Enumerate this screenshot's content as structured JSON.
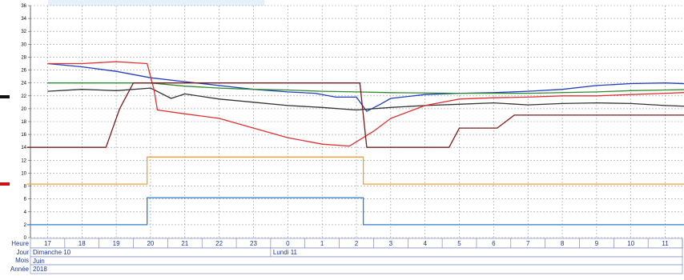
{
  "chart_data": {
    "type": "line",
    "title": "",
    "xlabel": "",
    "ylabel": "",
    "ylim": [
      0,
      36
    ],
    "yticks": [
      0,
      2,
      4,
      6,
      8,
      10,
      12,
      14,
      16,
      18,
      20,
      22,
      24,
      26,
      28,
      30,
      32,
      34,
      36
    ],
    "grid": true,
    "x_unit": "hour",
    "hours": [
      "17",
      "18",
      "19",
      "20",
      "21",
      "22",
      "23",
      "0",
      "1",
      "2",
      "3",
      "4",
      "5",
      "6",
      "7",
      "8",
      "9",
      "10",
      "11"
    ],
    "footer": {
      "hour_label": "Heure",
      "day_label": "Jour",
      "month_label": "Mois",
      "year_label": "Année",
      "days": [
        {
          "label": "Dimanche 10",
          "start_hour": "17"
        },
        {
          "label": "Lundi 11",
          "start_hour": "0"
        }
      ],
      "month": "Juin",
      "year": "2018"
    },
    "series": [
      {
        "color": "#1f3fbf",
        "points": [
          [
            0,
            27
          ],
          [
            1,
            26.5
          ],
          [
            2,
            25.8
          ],
          [
            3,
            24.8
          ],
          [
            4,
            24.2
          ],
          [
            5,
            23.6
          ],
          [
            6,
            23.0
          ],
          [
            7,
            22.6
          ],
          [
            7.8,
            22.4
          ],
          [
            8.4,
            21.8
          ],
          [
            9,
            21.8
          ],
          [
            9.3,
            19.6
          ],
          [
            9.7,
            20.7
          ],
          [
            10,
            21.6
          ],
          [
            11,
            22.2
          ],
          [
            12,
            22.4
          ],
          [
            13,
            22.5
          ],
          [
            14,
            22.7
          ],
          [
            15,
            23.0
          ],
          [
            16,
            23.6
          ],
          [
            17,
            23.9
          ],
          [
            18,
            24.0
          ],
          [
            19,
            23.8
          ]
        ]
      },
      {
        "color": "#2e8b2e",
        "points": [
          [
            0,
            24.0
          ],
          [
            2,
            24.0
          ],
          [
            3,
            24.0
          ],
          [
            4,
            23.5
          ],
          [
            5,
            23.2
          ],
          [
            6,
            23.0
          ],
          [
            7,
            22.9
          ],
          [
            8,
            22.7
          ],
          [
            9,
            22.6
          ],
          [
            10,
            22.5
          ],
          [
            12,
            22.4
          ],
          [
            14,
            22.4
          ],
          [
            16,
            22.6
          ],
          [
            17,
            22.8
          ],
          [
            18,
            22.9
          ],
          [
            19,
            23.0
          ]
        ]
      },
      {
        "color": "#333333",
        "points": [
          [
            0,
            22.7
          ],
          [
            1,
            23.0
          ],
          [
            2,
            22.8
          ],
          [
            3,
            23.2
          ],
          [
            3.6,
            21.6
          ],
          [
            4,
            22.3
          ],
          [
            5,
            21.5
          ],
          [
            6,
            21.0
          ],
          [
            7,
            20.5
          ],
          [
            8,
            20.2
          ],
          [
            9,
            19.8
          ],
          [
            9.5,
            20.0
          ],
          [
            10,
            20.2
          ],
          [
            11,
            20.5
          ],
          [
            12,
            20.7
          ],
          [
            13,
            20.9
          ],
          [
            14,
            20.6
          ],
          [
            15,
            20.8
          ],
          [
            16,
            20.9
          ],
          [
            17,
            20.8
          ],
          [
            18,
            20.5
          ],
          [
            19,
            20.3
          ]
        ]
      },
      {
        "color": "#e03030",
        "points": [
          [
            0,
            27.0
          ],
          [
            1,
            27.0
          ],
          [
            2,
            27.3
          ],
          [
            2.9,
            27.0
          ],
          [
            3.1,
            23.0
          ],
          [
            3.2,
            19.8
          ],
          [
            4,
            19.2
          ],
          [
            5,
            18.5
          ],
          [
            6,
            17.0
          ],
          [
            7,
            15.5
          ],
          [
            8,
            14.5
          ],
          [
            8.8,
            14.2
          ],
          [
            9.5,
            16.5
          ],
          [
            10,
            18.5
          ],
          [
            11,
            20.5
          ],
          [
            12,
            21.5
          ],
          [
            13,
            21.7
          ],
          [
            14,
            21.8
          ],
          [
            15,
            22.0
          ],
          [
            16,
            22.0
          ],
          [
            17,
            22.2
          ],
          [
            18,
            22.4
          ],
          [
            19,
            22.6
          ]
        ]
      },
      {
        "color": "#7a1a1a",
        "points": [
          [
            -0.6,
            14
          ],
          [
            1.7,
            14
          ],
          [
            2.1,
            20
          ],
          [
            2.5,
            24
          ],
          [
            3,
            24
          ],
          [
            4,
            24
          ],
          [
            5,
            24
          ],
          [
            6,
            24
          ],
          [
            7,
            24
          ],
          [
            8,
            24
          ],
          [
            9.1,
            24
          ],
          [
            9.3,
            14
          ],
          [
            10,
            14
          ],
          [
            11,
            14
          ],
          [
            11.7,
            14
          ],
          [
            12,
            17
          ],
          [
            13.1,
            17
          ],
          [
            13.6,
            19
          ],
          [
            19,
            19
          ]
        ]
      },
      {
        "color": "#f0a030",
        "points": [
          [
            -0.6,
            8.3
          ],
          [
            2.9,
            8.3
          ],
          [
            2.9,
            12.5
          ],
          [
            9.2,
            12.5
          ],
          [
            9.2,
            8.3
          ],
          [
            19,
            8.3
          ]
        ]
      },
      {
        "color": "#2a7fd0",
        "points": [
          [
            -0.6,
            2.0
          ],
          [
            2.9,
            2.0
          ],
          [
            2.9,
            6.2
          ],
          [
            9.2,
            6.2
          ],
          [
            9.2,
            2.0
          ],
          [
            19,
            2.0
          ]
        ]
      }
    ]
  }
}
